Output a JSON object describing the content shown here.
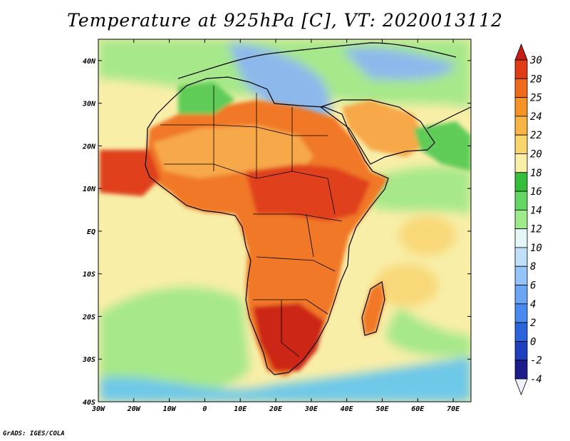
{
  "title": "Temperature at 925hPa [C], VT: 2020013112",
  "credit": "GrADS: IGES/COLA",
  "map": {
    "lon_range": [
      -30,
      75
    ],
    "lat_range": [
      -40,
      45
    ],
    "x_ticks": [
      {
        "lon": -30,
        "label": "30W"
      },
      {
        "lon": -20,
        "label": "20W"
      },
      {
        "lon": -10,
        "label": "10W"
      },
      {
        "lon": 0,
        "label": "0"
      },
      {
        "lon": 10,
        "label": "10E"
      },
      {
        "lon": 20,
        "label": "20E"
      },
      {
        "lon": 30,
        "label": "30E"
      },
      {
        "lon": 40,
        "label": "40E"
      },
      {
        "lon": 50,
        "label": "50E"
      },
      {
        "lon": 60,
        "label": "60E"
      },
      {
        "lon": 70,
        "label": "70E"
      }
    ],
    "y_ticks": [
      {
        "lat": 40,
        "label": "40N"
      },
      {
        "lat": 30,
        "label": "30N"
      },
      {
        "lat": 20,
        "label": "20N"
      },
      {
        "lat": 10,
        "label": "10N"
      },
      {
        "lat": 0,
        "label": "EQ"
      },
      {
        "lat": -10,
        "label": "10S"
      },
      {
        "lat": -20,
        "label": "20S"
      },
      {
        "lat": -30,
        "label": "30S"
      },
      {
        "lat": -40,
        "label": "40S"
      }
    ]
  },
  "colorbar": {
    "levels": [
      "30",
      "28",
      "25",
      "24",
      "22",
      "20",
      "18",
      "16",
      "14",
      "12",
      "10",
      "8",
      "6",
      "4",
      "2",
      "0",
      "-2",
      "-4"
    ],
    "colors": [
      "#f0f0fc",
      "#1c1c8c",
      "#1f3fbe",
      "#2c64dc",
      "#4a8af0",
      "#6aa6f4",
      "#94c4f8",
      "#bfe0f8",
      "#e4f6f6",
      "#9fea8a",
      "#64d664",
      "#34be3c",
      "#f8f0a8",
      "#f8d66c",
      "#f7b447",
      "#f59326",
      "#f06a1c",
      "#e03c16",
      "#c81c16"
    ]
  },
  "colors": {
    "ocean_warm": "#f8d878",
    "ocean_mild": "#f8eea8",
    "ocean_cool": "#a6e88a",
    "ocean_cold": "#6ec8e8",
    "land_hot": "#e0401c",
    "land_very_hot": "#cc2616",
    "land_warm": "#f07828",
    "land_mild": "#f7a848",
    "land_cool": "#60cc58",
    "land_cold": "#8cb8ec"
  }
}
